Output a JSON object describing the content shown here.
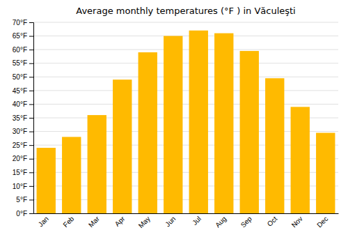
{
  "chart_data": {
    "type": "bar",
    "title": "Average monthly temperatures (°F ) in Văculeşti",
    "categories": [
      "Jan",
      "Feb",
      "Mar",
      "Apr",
      "May",
      "Jun",
      "Jul",
      "Aug",
      "Sep",
      "Oct",
      "Nov",
      "Dec"
    ],
    "values": [
      24,
      28,
      36,
      49,
      59,
      65,
      67,
      66,
      59.5,
      49.5,
      39,
      29.5
    ],
    "color": "#FFBA00",
    "ylim": [
      0,
      70
    ],
    "yticks": [
      {
        "value": 0,
        "label": "0°F"
      },
      {
        "value": 5,
        "label": "5°F"
      },
      {
        "value": 10,
        "label": "10°F"
      },
      {
        "value": 15,
        "label": "15°F"
      },
      {
        "value": 20,
        "label": "20°F"
      },
      {
        "value": 25,
        "label": "25°F"
      },
      {
        "value": 30,
        "label": "30°F"
      },
      {
        "value": 35,
        "label": "35°F"
      },
      {
        "value": 40,
        "label": "40°F"
      },
      {
        "value": 45,
        "label": "45°F"
      },
      {
        "value": 50,
        "label": "50°F"
      },
      {
        "value": 55,
        "label": "55°F"
      },
      {
        "value": 60,
        "label": "60°F"
      },
      {
        "value": 65,
        "label": "65°F"
      },
      {
        "value": 70,
        "label": "70°F"
      }
    ],
    "grid": true
  }
}
